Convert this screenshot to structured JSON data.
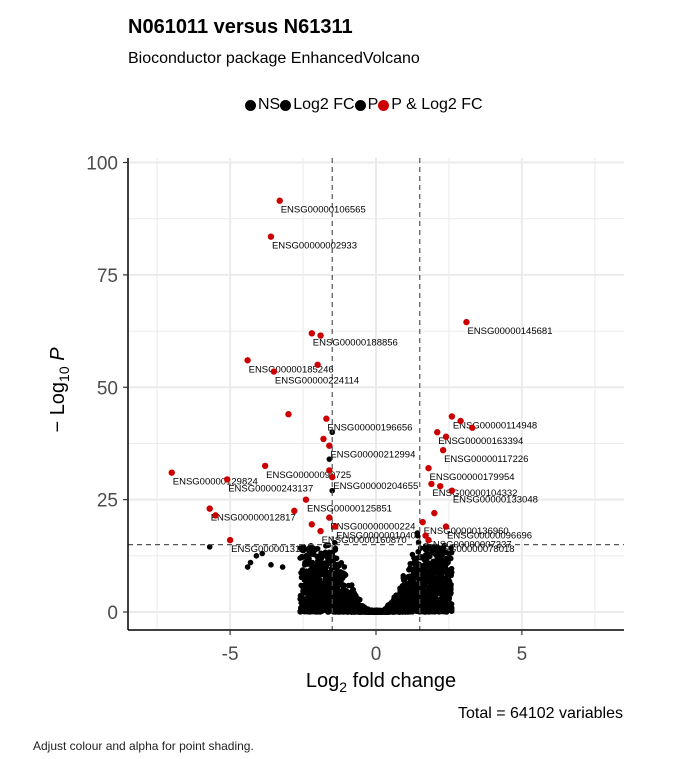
{
  "chart_data": {
    "type": "scatter",
    "title": "N061011 versus N61311",
    "subtitle": "Bioconductor package EnhancedVolcano",
    "xlabel_main": "Log",
    "xlabel_sub": "2",
    "xlabel_rest": " fold change",
    "ylabel_main": "− Log",
    "ylabel_sub": "10",
    "ylabel_rest": " P",
    "xlim": [
      -8.5,
      8.5
    ],
    "ylim": [
      -4,
      101
    ],
    "x_ticks": [
      -5,
      0,
      5
    ],
    "y_ticks": [
      0,
      25,
      50,
      75,
      100
    ],
    "grid": true,
    "fc_cutoff": 1.5,
    "p_cutoff_log10": 15,
    "caption": "Total = 64102 variables",
    "legend": [
      {
        "label": "NS",
        "color": "#000000"
      },
      {
        "label": "Log2 FC",
        "color": "#000000"
      },
      {
        "label": "P",
        "color": "#000000"
      },
      {
        "label": "P & Log2 FC",
        "color": "#cc0000"
      }
    ],
    "colors": {
      "ns": "#000000",
      "sig": "#cc0000",
      "grid": "#ebebeb",
      "axis": "#000000"
    },
    "significant_points": [
      {
        "x": -3.3,
        "y": 91.5,
        "label": "ENSG00000106565"
      },
      {
        "x": -3.6,
        "y": 83.5,
        "label": "ENSG00000002933"
      },
      {
        "x": 3.1,
        "y": 64.5,
        "label": "ENSG00000145681"
      },
      {
        "x": -2.2,
        "y": 62,
        "label": "ENSG00000188856"
      },
      {
        "x": -1.9,
        "y": 61.5,
        "label": ""
      },
      {
        "x": -4.4,
        "y": 56,
        "label": "ENSG00000185246"
      },
      {
        "x": -3.5,
        "y": 53.5,
        "label": "ENSG00000224114"
      },
      {
        "x": -2.0,
        "y": 55,
        "label": ""
      },
      {
        "x": -3.0,
        "y": 44,
        "label": ""
      },
      {
        "x": -1.7,
        "y": 43,
        "label": "ENSG00000196656"
      },
      {
        "x": 2.6,
        "y": 43.5,
        "label": "ENSG00000114948"
      },
      {
        "x": 2.9,
        "y": 42.5,
        "label": ""
      },
      {
        "x": 3.3,
        "y": 41,
        "label": ""
      },
      {
        "x": 2.1,
        "y": 40,
        "label": "ENSG00000163394"
      },
      {
        "x": 2.4,
        "y": 39,
        "label": ""
      },
      {
        "x": -1.8,
        "y": 38.5,
        "label": ""
      },
      {
        "x": -1.6,
        "y": 37,
        "label": "ENSG00000212994"
      },
      {
        "x": 2.3,
        "y": 36,
        "label": "ENSG00000117226"
      },
      {
        "x": -3.8,
        "y": 32.5,
        "label": "ENSG00000099725"
      },
      {
        "x": -7.0,
        "y": 31,
        "label": "ENSG00000129824"
      },
      {
        "x": -1.6,
        "y": 31.5,
        "label": ""
      },
      {
        "x": 1.8,
        "y": 32,
        "label": "ENSG00000179954"
      },
      {
        "x": -5.1,
        "y": 29.5,
        "label": "ENSG00000243137"
      },
      {
        "x": -1.5,
        "y": 30,
        "label": "ENSG00000204655"
      },
      {
        "x": 1.9,
        "y": 28.5,
        "label": "ENSG00000104332"
      },
      {
        "x": 2.2,
        "y": 28,
        "label": ""
      },
      {
        "x": 2.6,
        "y": 27,
        "label": "ENSG00000133048"
      },
      {
        "x": -2.4,
        "y": 25,
        "label": "ENSG00000125851"
      },
      {
        "x": -2.8,
        "y": 22.5,
        "label": ""
      },
      {
        "x": -5.7,
        "y": 23,
        "label": "ENSG00000012817"
      },
      {
        "x": -5.5,
        "y": 21.5,
        "label": ""
      },
      {
        "x": -1.6,
        "y": 21,
        "label": "ENSG00000000224"
      },
      {
        "x": 1.6,
        "y": 20,
        "label": "ENSG00000136960"
      },
      {
        "x": 2.4,
        "y": 19,
        "label": "ENSG00000096696"
      },
      {
        "x": -1.4,
        "y": 19,
        "label": "ENSG00000010404"
      },
      {
        "x": -1.9,
        "y": 18,
        "label": "ENSG00000160870"
      },
      {
        "x": 1.7,
        "y": 17,
        "label": "ENSG00000007237"
      },
      {
        "x": -5.0,
        "y": 16,
        "label": "ENSG00000131013"
      },
      {
        "x": 1.8,
        "y": 16,
        "label": "ENSG00000078018"
      },
      {
        "x": -2.2,
        "y": 19.5,
        "label": ""
      },
      {
        "x": 2.0,
        "y": 22,
        "label": ""
      }
    ],
    "ns_points": [
      {
        "x": -5.7,
        "y": 14.5
      },
      {
        "x": -4.3,
        "y": 11
      },
      {
        "x": -4.1,
        "y": 12.5
      },
      {
        "x": -3.6,
        "y": 10.5
      },
      {
        "x": -3.2,
        "y": 10
      },
      {
        "x": -2.6,
        "y": 12
      },
      {
        "x": -1.6,
        "y": 34
      },
      {
        "x": -1.5,
        "y": 40
      },
      {
        "x": -1.5,
        "y": 27
      },
      {
        "x": -4.4,
        "y": 10
      },
      {
        "x": -3.9,
        "y": 13
      }
    ]
  }
}
